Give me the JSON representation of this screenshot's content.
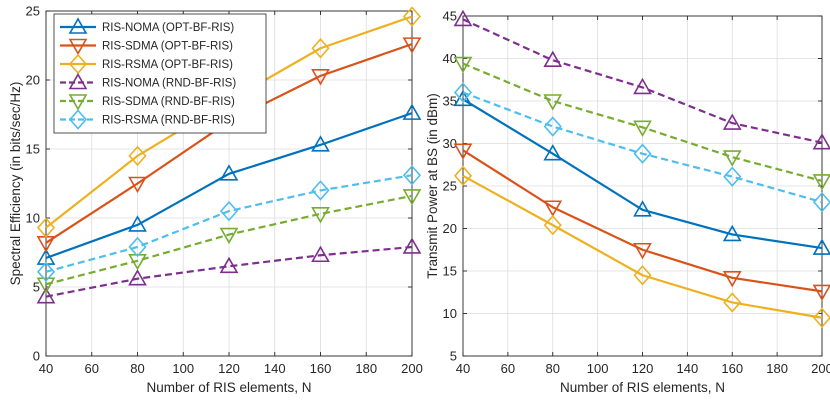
{
  "chart_data": [
    {
      "type": "line",
      "xlabel": "Number of RIS elements, N",
      "ylabel": "Spectral Efficiency  (in bits/sec/Hz)",
      "x": [
        40,
        80,
        120,
        160,
        200
      ],
      "xlim": [
        40,
        200
      ],
      "ylim": [
        0,
        25
      ],
      "xticks": [
        40,
        60,
        80,
        100,
        120,
        140,
        160,
        180,
        200
      ],
      "yticks": [
        0,
        5,
        10,
        15,
        20,
        25
      ],
      "grid": true,
      "legend_position": "top-left",
      "series": [
        {
          "name": "RIS-NOMA (OPT-BF-RIS)",
          "values": [
            7.1,
            9.5,
            13.2,
            15.3,
            17.6
          ],
          "color": "#0072BD",
          "marker": "triangle-up",
          "dashed": false
        },
        {
          "name": "RIS-SDMA (OPT-BF-RIS)",
          "values": [
            8.2,
            12.5,
            17.0,
            20.3,
            22.6
          ],
          "color": "#D95319",
          "marker": "triangle-down",
          "dashed": false
        },
        {
          "name": "RIS-RSMA (OPT-BF-RIS)",
          "values": [
            9.3,
            14.5,
            18.5,
            22.3,
            24.6
          ],
          "color": "#EDB120",
          "marker": "diamond",
          "dashed": false
        },
        {
          "name": "RIS-NOMA (RND-BF-RIS)",
          "values": [
            4.3,
            5.6,
            6.5,
            7.3,
            7.9
          ],
          "color": "#7E2F8E",
          "marker": "triangle-up",
          "dashed": true
        },
        {
          "name": "RIS-SDMA (RND-BF-RIS)",
          "values": [
            5.2,
            6.9,
            8.8,
            10.3,
            11.6
          ],
          "color": "#77AC30",
          "marker": "triangle-down",
          "dashed": true
        },
        {
          "name": "RIS-RSMA (RND-BF-RIS)",
          "values": [
            6.1,
            7.9,
            10.5,
            12.0,
            13.1
          ],
          "color": "#4DBEEE",
          "marker": "diamond",
          "dashed": true
        }
      ]
    },
    {
      "type": "line",
      "xlabel": "Number of RIS elements, N",
      "ylabel": "Transmit Power at BS  (in dBm)",
      "x": [
        40,
        80,
        120,
        160,
        200
      ],
      "xlim": [
        40,
        200
      ],
      "ylim": [
        5,
        45
      ],
      "xticks": [
        40,
        60,
        80,
        100,
        120,
        140,
        160,
        180,
        200
      ],
      "yticks": [
        5,
        10,
        15,
        20,
        25,
        30,
        35,
        40,
        45
      ],
      "grid": true,
      "legend_position": "none",
      "series": [
        {
          "values": [
            35.2,
            28.8,
            22.2,
            19.3,
            17.7
          ],
          "color": "#0072BD",
          "marker": "triangle-up",
          "dashed": false
        },
        {
          "values": [
            29.2,
            22.5,
            17.5,
            14.2,
            12.6
          ],
          "color": "#D95319",
          "marker": "triangle-down",
          "dashed": false
        },
        {
          "values": [
            26.2,
            20.4,
            14.5,
            11.3,
            9.5
          ],
          "color": "#EDB120",
          "marker": "diamond",
          "dashed": false
        },
        {
          "values": [
            44.6,
            39.8,
            36.6,
            32.4,
            30.1
          ],
          "color": "#7E2F8E",
          "marker": "triangle-up",
          "dashed": true
        },
        {
          "values": [
            39.4,
            35.0,
            31.9,
            28.4,
            25.6
          ],
          "color": "#77AC30",
          "marker": "triangle-down",
          "dashed": true
        },
        {
          "values": [
            36.0,
            32.0,
            28.8,
            26.1,
            23.1
          ],
          "color": "#4DBEEE",
          "marker": "diamond",
          "dashed": true
        }
      ]
    }
  ]
}
